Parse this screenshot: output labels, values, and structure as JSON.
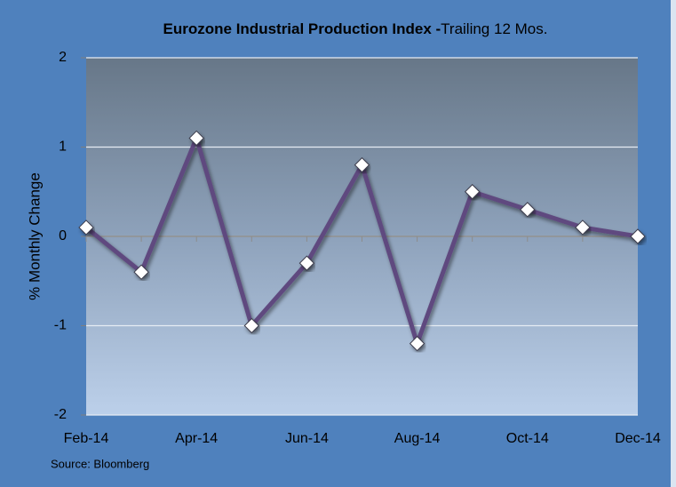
{
  "chart_data": {
    "type": "line",
    "title": "Eurozone Industrial Production Index -",
    "subtitle": "Trailing 12  Mos.",
    "ylabel": "% Monthly Change",
    "source": "Source: Bloomberg",
    "categories": [
      "Feb-14",
      null,
      "Apr-14",
      null,
      "Jun-14",
      null,
      "Aug-14",
      null,
      "Oct-14",
      null,
      "Dec-14"
    ],
    "series": [
      {
        "name": "Eurozone Industrial Production",
        "color": "#5f4a7f",
        "values": [
          0.1,
          -0.4,
          1.1,
          -1.0,
          -0.3,
          0.8,
          -1.2,
          0.5,
          0.3,
          0.1,
          0.0
        ]
      }
    ],
    "ylim": [
      -2,
      2
    ],
    "yticks": [
      -2,
      -1,
      0,
      1,
      2
    ],
    "grid": true
  }
}
